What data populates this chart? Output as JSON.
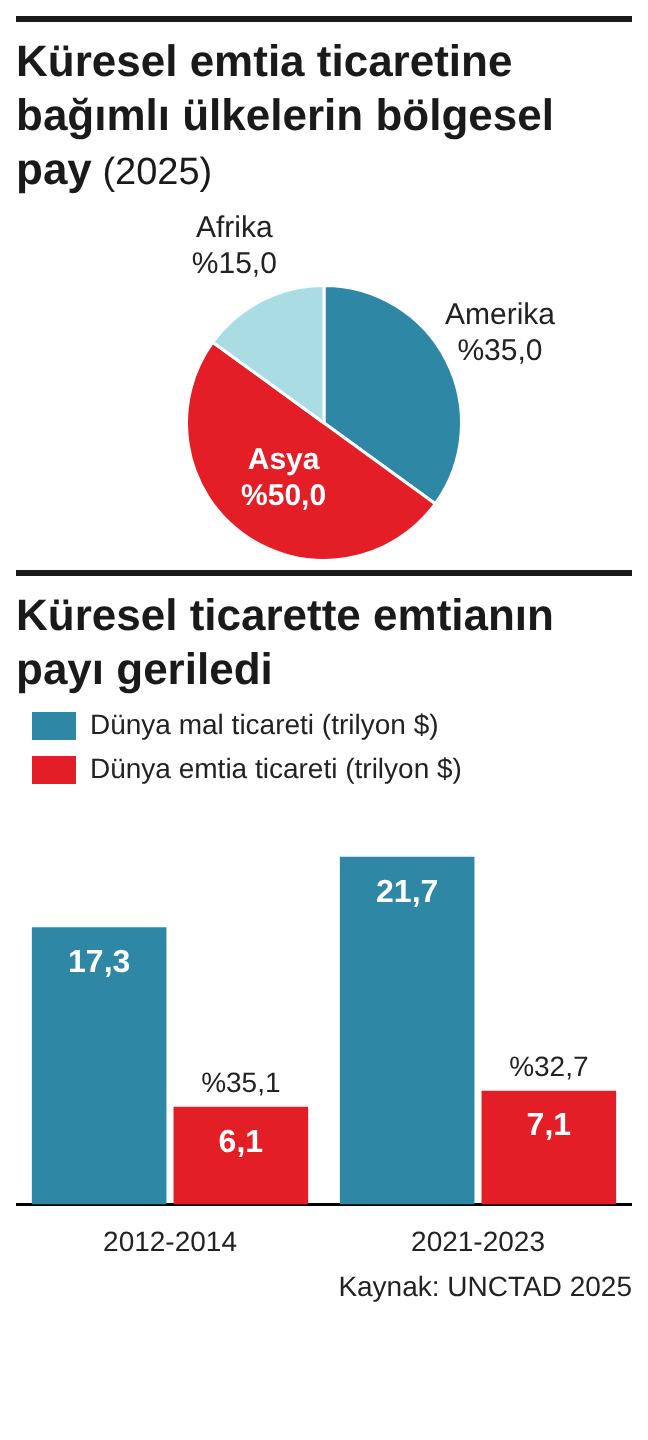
{
  "chart_data": [
    {
      "type": "pie",
      "title": "Küresel emtia ticaretine bağımlı ülkelerin bölgesel pay",
      "subtitle": "(2025)",
      "categories": [
        "Amerika",
        "Asya",
        "Afrika"
      ],
      "values": [
        35,
        50,
        15
      ],
      "colors": [
        "#2e87a5",
        "#e41e26",
        "#a9dce3"
      ],
      "value_labels": [
        "%35,0",
        "%50,0",
        "%15,0"
      ],
      "legend": false
    },
    {
      "type": "bar",
      "title": "Küresel ticarette emtianın payı geriledi",
      "categories": [
        "2012-2014",
        "2021-2023"
      ],
      "series": [
        {
          "name": "Dünya mal ticareti (trilyon $)",
          "color": "#2e87a5",
          "values": [
            17.3,
            21.7
          ],
          "value_labels": [
            "17,3",
            "21,7"
          ]
        },
        {
          "name": "Dünya emtia ticareti (trilyon $)",
          "color": "#e41e26",
          "values": [
            6.1,
            7.1
          ],
          "value_labels": [
            "6,1",
            "7,1"
          ]
        }
      ],
      "legend": "top left",
      "tick_labels": "x",
      "annotations": [
        {
          "text": "%35,1",
          "x": "2012-2014",
          "y": 6.1
        },
        {
          "text": "%32,7",
          "x": "2021-2023",
          "y": 7.1
        },
        "Kaynak: UNCTAD 2025"
      ]
    }
  ]
}
